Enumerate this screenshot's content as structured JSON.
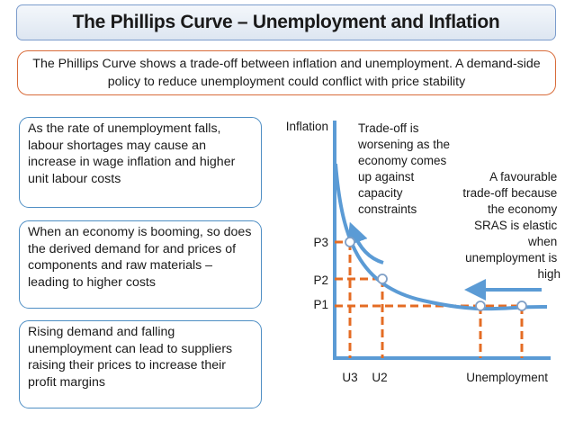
{
  "title": "The Phillips Curve – Unemployment and Inflation",
  "intro": "The Phillips Curve shows a trade-off between inflation and unemployment. A demand-side policy to reduce unemployment could conflict with price stability",
  "notes": [
    "As the rate of unemployment falls, labour shortages may cause an increase in wage inflation and higher unit labour costs",
    "When an economy is booming, so does the derived demand for and prices of components and raw materials – leading to higher costs",
    "Rising demand and falling unemployment can lead to suppliers raising their prices to increase their profit margins"
  ],
  "diagram": {
    "y_axis_label": "Inflation",
    "x_axis_label": "Unemployment",
    "price_labels": [
      "P3",
      "P2",
      "P1"
    ],
    "unemployment_labels": [
      "U3",
      "U2"
    ],
    "annotation_left": [
      "Trade-off is",
      "worsening as the",
      "economy comes",
      "up against",
      "capacity",
      "constraints"
    ],
    "annotation_right": [
      "A favourable",
      "trade-off because",
      "the economy",
      "SRAS is elastic",
      "when",
      "unemployment is",
      "high"
    ]
  },
  "colors": {
    "title_border": "#7b9ccc",
    "intro_border": "#d86c3a",
    "note_border": "#4e8ec4",
    "curve": "#5b9bd5",
    "axis": "#5b9bd5",
    "guide_lines": "#e46c24"
  }
}
